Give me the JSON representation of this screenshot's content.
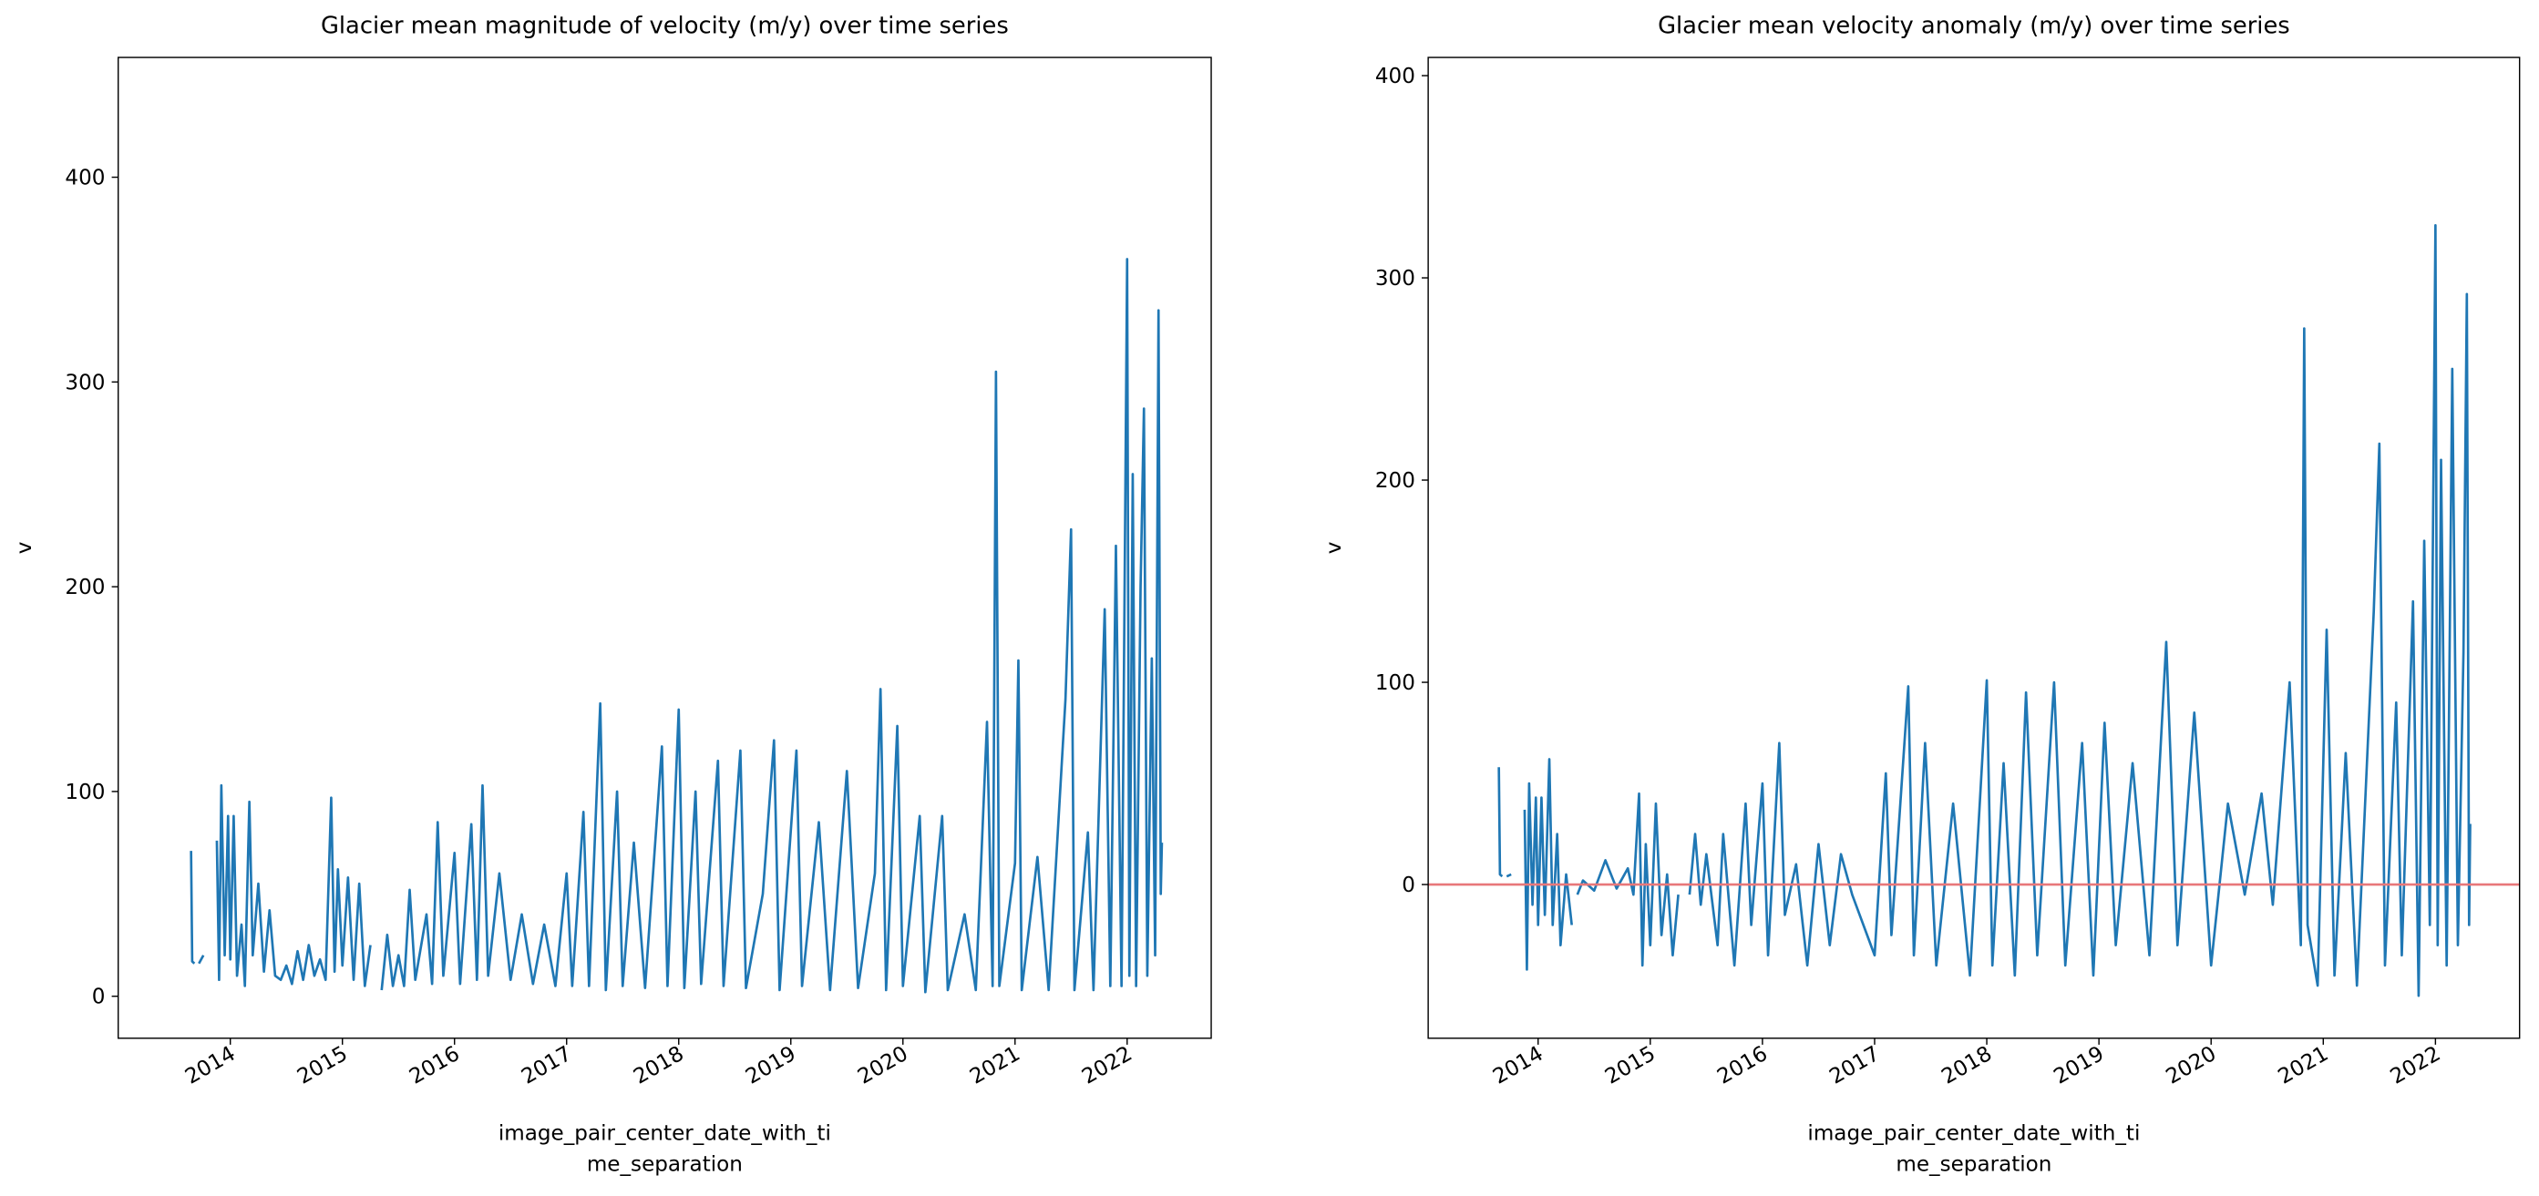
{
  "chart_data": [
    {
      "type": "line",
      "title": "Glacier mean magnitude of velocity (m/y) over time series",
      "ylabel": "v",
      "xlabel": [
        "image_pair_center_date_with_ti",
        "me_separation"
      ],
      "xlim": [
        2013.0,
        2022.75
      ],
      "xticks": [
        2014,
        2015,
        2016,
        2017,
        2018,
        2019,
        2020,
        2021,
        2022
      ],
      "ylim": [
        -20.5,
        458.5
      ],
      "yticks": [
        0,
        100,
        200,
        300,
        400
      ],
      "color": "#1f77b4",
      "x": [
        2013.65,
        2013.66,
        2013.68,
        2013.7,
        2013.72,
        2013.76,
        2013.8,
        2013.88,
        2013.9,
        2013.92,
        2013.95,
        2013.98,
        2014.0,
        2014.03,
        2014.06,
        2014.1,
        2014.13,
        2014.17,
        2014.2,
        2014.25,
        2014.3,
        2014.35,
        2014.4,
        2014.45,
        2014.5,
        2014.55,
        2014.6,
        2014.65,
        2014.7,
        2014.75,
        2014.8,
        2014.85,
        2014.9,
        2014.93,
        2014.96,
        2015.0,
        2015.05,
        2015.1,
        2015.15,
        2015.2,
        2015.25,
        2015.28,
        2015.35,
        2015.4,
        2015.45,
        2015.5,
        2015.55,
        2015.6,
        2015.65,
        2015.75,
        2015.8,
        2015.85,
        2015.9,
        2016.0,
        2016.05,
        2016.15,
        2016.2,
        2016.25,
        2016.3,
        2016.4,
        2016.5,
        2016.6,
        2016.7,
        2016.8,
        2016.9,
        2017.0,
        2017.05,
        2017.15,
        2017.2,
        2017.3,
        2017.35,
        2017.45,
        2017.5,
        2017.6,
        2017.7,
        2017.85,
        2017.9,
        2018.0,
        2018.05,
        2018.15,
        2018.2,
        2018.35,
        2018.4,
        2018.55,
        2018.6,
        2018.75,
        2018.85,
        2018.9,
        2019.05,
        2019.1,
        2019.25,
        2019.35,
        2019.5,
        2019.6,
        2019.75,
        2019.8,
        2019.85,
        2019.95,
        2020.0,
        2020.15,
        2020.2,
        2020.35,
        2020.4,
        2020.55,
        2020.65,
        2020.75,
        2020.8,
        2020.83,
        2020.86,
        2021.0,
        2021.03,
        2021.06,
        2021.2,
        2021.3,
        2021.45,
        2021.5,
        2021.53,
        2021.65,
        2021.7,
        2021.8,
        2021.85,
        2021.9,
        2021.95,
        2022.0,
        2022.02,
        2022.05,
        2022.08,
        2022.12,
        2022.15,
        2022.18,
        2022.22,
        2022.25,
        2022.28,
        2022.3,
        2022.31
      ],
      "values": [
        71,
        17,
        16,
        null,
        16,
        20,
        null,
        76,
        8,
        103,
        20,
        88,
        18,
        88,
        10,
        35,
        5,
        95,
        20,
        55,
        12,
        42,
        10,
        8,
        15,
        6,
        22,
        8,
        25,
        10,
        18,
        8,
        97,
        12,
        62,
        15,
        58,
        8,
        55,
        5,
        25,
        null,
        3,
        30,
        5,
        20,
        5,
        52,
        8,
        40,
        6,
        85,
        10,
        70,
        6,
        84,
        8,
        103,
        10,
        60,
        8,
        40,
        6,
        35,
        5,
        60,
        5,
        90,
        5,
        143,
        3,
        100,
        5,
        75,
        4,
        122,
        5,
        140,
        4,
        100,
        6,
        115,
        5,
        120,
        4,
        50,
        125,
        3,
        120,
        5,
        85,
        3,
        110,
        4,
        60,
        150,
        3,
        132,
        5,
        88,
        2,
        88,
        3,
        40,
        3,
        134,
        5,
        305,
        5,
        65,
        164,
        3,
        68,
        3,
        145,
        228,
        3,
        80,
        3,
        189,
        5,
        220,
        5,
        360,
        10,
        255,
        5,
        200,
        287,
        10,
        165,
        20,
        335,
        50,
        75
      ]
    },
    {
      "type": "line",
      "title": "Glacier mean velocity anomaly (m/y) over time series",
      "ylabel": "v",
      "xlabel": [
        "image_pair_center_date_with_ti",
        "me_separation"
      ],
      "xlim": [
        2013.02,
        2022.75
      ],
      "xticks": [
        2014,
        2015,
        2016,
        2017,
        2018,
        2019,
        2020,
        2021,
        2022
      ],
      "ylim": [
        -76,
        409
      ],
      "yticks": [
        0,
        100,
        200,
        300,
        400
      ],
      "color": "#1f77b4",
      "hline": {
        "value": 0,
        "color": "#e8777a"
      },
      "x": [
        2013.65,
        2013.66,
        2013.68,
        2013.7,
        2013.72,
        2013.76,
        2013.8,
        2013.88,
        2013.9,
        2013.92,
        2013.95,
        2013.98,
        2014.0,
        2014.03,
        2014.06,
        2014.1,
        2014.13,
        2014.17,
        2014.2,
        2014.25,
        2014.3,
        2014.33,
        2014.35,
        2014.4,
        2014.5,
        2014.6,
        2014.7,
        2014.8,
        2014.85,
        2014.9,
        2014.93,
        2014.96,
        2015.0,
        2015.05,
        2015.1,
        2015.15,
        2015.2,
        2015.25,
        2015.28,
        2015.35,
        2015.4,
        2015.45,
        2015.5,
        2015.6,
        2015.65,
        2015.75,
        2015.85,
        2015.9,
        2016.0,
        2016.05,
        2016.15,
        2016.2,
        2016.3,
        2016.4,
        2016.5,
        2016.6,
        2016.7,
        2016.8,
        2017.0,
        2017.1,
        2017.15,
        2017.3,
        2017.35,
        2017.45,
        2017.55,
        2017.7,
        2017.85,
        2018.0,
        2018.05,
        2018.15,
        2018.25,
        2018.35,
        2018.45,
        2018.6,
        2018.7,
        2018.85,
        2018.95,
        2019.05,
        2019.15,
        2019.3,
        2019.45,
        2019.6,
        2019.7,
        2019.85,
        2020.0,
        2020.15,
        2020.3,
        2020.45,
        2020.55,
        2020.7,
        2020.8,
        2020.83,
        2020.86,
        2020.95,
        2021.03,
        2021.1,
        2021.2,
        2021.3,
        2021.45,
        2021.5,
        2021.55,
        2021.65,
        2021.7,
        2021.8,
        2021.85,
        2021.9,
        2021.95,
        2022.0,
        2022.02,
        2022.05,
        2022.1,
        2022.15,
        2022.2,
        2022.25,
        2022.28,
        2022.3,
        2022.31
      ],
      "values": [
        58,
        5,
        4,
        null,
        4,
        5,
        null,
        37,
        -42,
        50,
        -10,
        43,
        -20,
        43,
        -15,
        62,
        -20,
        25,
        -30,
        5,
        -20,
        null,
        -5,
        2,
        -3,
        12,
        -2,
        8,
        -5,
        45,
        -40,
        20,
        -30,
        40,
        -25,
        5,
        -35,
        -5,
        null,
        -5,
        25,
        -10,
        15,
        -30,
        25,
        -40,
        40,
        -20,
        50,
        -35,
        70,
        -15,
        10,
        -40,
        20,
        -30,
        15,
        -5,
        -35,
        55,
        -25,
        98,
        -35,
        70,
        -40,
        40,
        -45,
        101,
        -40,
        60,
        -45,
        95,
        -35,
        100,
        -40,
        70,
        -45,
        80,
        -30,
        60,
        -35,
        120,
        -30,
        85,
        -40,
        40,
        -5,
        45,
        -10,
        100,
        -30,
        275,
        -20,
        -50,
        126,
        -45,
        65,
        -50,
        135,
        218,
        -40,
        90,
        -35,
        140,
        -55,
        170,
        -20,
        326,
        -30,
        210,
        -40,
        255,
        -30,
        115,
        292,
        -20,
        30
      ]
    }
  ]
}
